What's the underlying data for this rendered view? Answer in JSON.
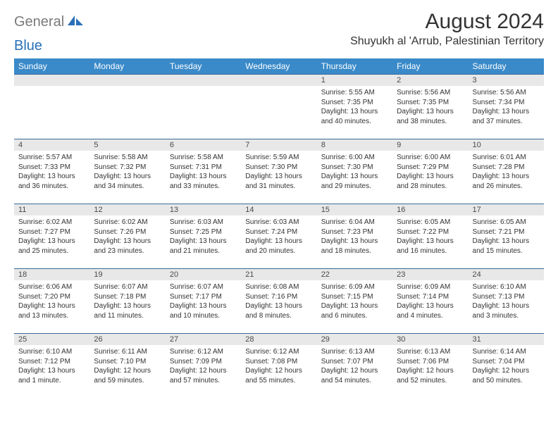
{
  "logo": {
    "part1": "General",
    "part2": "Blue"
  },
  "title": "August 2024",
  "location": "Shuyukh al 'Arrub, Palestinian Territory",
  "colors": {
    "header_bg": "#3a8ac9",
    "header_text": "#ffffff",
    "daynum_bg": "#e8e8e8",
    "row_border": "#3a6a9a",
    "logo_gray": "#7a7a7a",
    "logo_blue": "#2970b8",
    "text": "#333333",
    "page_bg": "#ffffff"
  },
  "weekdays": [
    "Sunday",
    "Monday",
    "Tuesday",
    "Wednesday",
    "Thursday",
    "Friday",
    "Saturday"
  ],
  "weeks": [
    [
      null,
      null,
      null,
      null,
      {
        "n": "1",
        "sunrise": "5:55 AM",
        "sunset": "7:35 PM",
        "daylight": "13 hours and 40 minutes."
      },
      {
        "n": "2",
        "sunrise": "5:56 AM",
        "sunset": "7:35 PM",
        "daylight": "13 hours and 38 minutes."
      },
      {
        "n": "3",
        "sunrise": "5:56 AM",
        "sunset": "7:34 PM",
        "daylight": "13 hours and 37 minutes."
      }
    ],
    [
      {
        "n": "4",
        "sunrise": "5:57 AM",
        "sunset": "7:33 PM",
        "daylight": "13 hours and 36 minutes."
      },
      {
        "n": "5",
        "sunrise": "5:58 AM",
        "sunset": "7:32 PM",
        "daylight": "13 hours and 34 minutes."
      },
      {
        "n": "6",
        "sunrise": "5:58 AM",
        "sunset": "7:31 PM",
        "daylight": "13 hours and 33 minutes."
      },
      {
        "n": "7",
        "sunrise": "5:59 AM",
        "sunset": "7:30 PM",
        "daylight": "13 hours and 31 minutes."
      },
      {
        "n": "8",
        "sunrise": "6:00 AM",
        "sunset": "7:30 PM",
        "daylight": "13 hours and 29 minutes."
      },
      {
        "n": "9",
        "sunrise": "6:00 AM",
        "sunset": "7:29 PM",
        "daylight": "13 hours and 28 minutes."
      },
      {
        "n": "10",
        "sunrise": "6:01 AM",
        "sunset": "7:28 PM",
        "daylight": "13 hours and 26 minutes."
      }
    ],
    [
      {
        "n": "11",
        "sunrise": "6:02 AM",
        "sunset": "7:27 PM",
        "daylight": "13 hours and 25 minutes."
      },
      {
        "n": "12",
        "sunrise": "6:02 AM",
        "sunset": "7:26 PM",
        "daylight": "13 hours and 23 minutes."
      },
      {
        "n": "13",
        "sunrise": "6:03 AM",
        "sunset": "7:25 PM",
        "daylight": "13 hours and 21 minutes."
      },
      {
        "n": "14",
        "sunrise": "6:03 AM",
        "sunset": "7:24 PM",
        "daylight": "13 hours and 20 minutes."
      },
      {
        "n": "15",
        "sunrise": "6:04 AM",
        "sunset": "7:23 PM",
        "daylight": "13 hours and 18 minutes."
      },
      {
        "n": "16",
        "sunrise": "6:05 AM",
        "sunset": "7:22 PM",
        "daylight": "13 hours and 16 minutes."
      },
      {
        "n": "17",
        "sunrise": "6:05 AM",
        "sunset": "7:21 PM",
        "daylight": "13 hours and 15 minutes."
      }
    ],
    [
      {
        "n": "18",
        "sunrise": "6:06 AM",
        "sunset": "7:20 PM",
        "daylight": "13 hours and 13 minutes."
      },
      {
        "n": "19",
        "sunrise": "6:07 AM",
        "sunset": "7:18 PM",
        "daylight": "13 hours and 11 minutes."
      },
      {
        "n": "20",
        "sunrise": "6:07 AM",
        "sunset": "7:17 PM",
        "daylight": "13 hours and 10 minutes."
      },
      {
        "n": "21",
        "sunrise": "6:08 AM",
        "sunset": "7:16 PM",
        "daylight": "13 hours and 8 minutes."
      },
      {
        "n": "22",
        "sunrise": "6:09 AM",
        "sunset": "7:15 PM",
        "daylight": "13 hours and 6 minutes."
      },
      {
        "n": "23",
        "sunrise": "6:09 AM",
        "sunset": "7:14 PM",
        "daylight": "13 hours and 4 minutes."
      },
      {
        "n": "24",
        "sunrise": "6:10 AM",
        "sunset": "7:13 PM",
        "daylight": "13 hours and 3 minutes."
      }
    ],
    [
      {
        "n": "25",
        "sunrise": "6:10 AM",
        "sunset": "7:12 PM",
        "daylight": "13 hours and 1 minute."
      },
      {
        "n": "26",
        "sunrise": "6:11 AM",
        "sunset": "7:10 PM",
        "daylight": "12 hours and 59 minutes."
      },
      {
        "n": "27",
        "sunrise": "6:12 AM",
        "sunset": "7:09 PM",
        "daylight": "12 hours and 57 minutes."
      },
      {
        "n": "28",
        "sunrise": "6:12 AM",
        "sunset": "7:08 PM",
        "daylight": "12 hours and 55 minutes."
      },
      {
        "n": "29",
        "sunrise": "6:13 AM",
        "sunset": "7:07 PM",
        "daylight": "12 hours and 54 minutes."
      },
      {
        "n": "30",
        "sunrise": "6:13 AM",
        "sunset": "7:06 PM",
        "daylight": "12 hours and 52 minutes."
      },
      {
        "n": "31",
        "sunrise": "6:14 AM",
        "sunset": "7:04 PM",
        "daylight": "12 hours and 50 minutes."
      }
    ]
  ],
  "labels": {
    "sunrise": "Sunrise: ",
    "sunset": "Sunset: ",
    "daylight": "Daylight: "
  }
}
